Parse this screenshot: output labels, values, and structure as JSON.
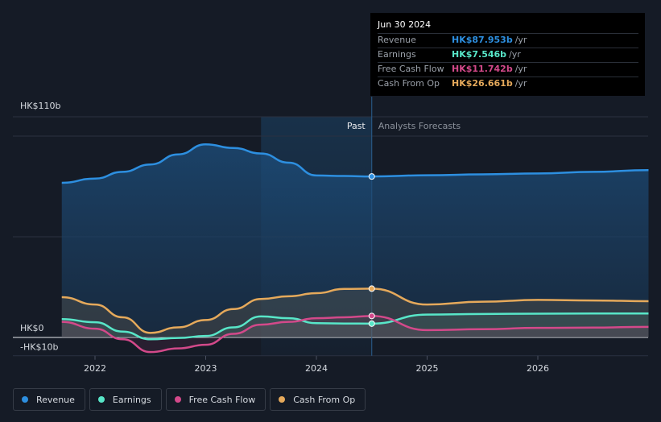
{
  "chart_data": {
    "type": "area",
    "y_axis": {
      "top_label": "HK$110b",
      "zero_label": "HK$0",
      "bottom_label": "-HK$10b",
      "ylim": [
        -10,
        110
      ]
    },
    "x_axis": {
      "tick_labels": [
        "2022",
        "2023",
        "2024",
        "2025",
        "2026"
      ],
      "ticks": [
        2022,
        2023,
        2024,
        2025,
        2026
      ],
      "xlim": [
        2021.5,
        2027
      ]
    },
    "divider_x": 2024.5,
    "shaded_start_x": 2023.5,
    "past_label": "Past",
    "forecast_label": "Analysts Forecasts",
    "grid": true,
    "series": [
      {
        "name": "Revenue",
        "color": "#2d8fe0",
        "x": [
          2021.7,
          2022.0,
          2022.25,
          2022.5,
          2022.75,
          2023.0,
          2023.25,
          2023.5,
          2023.75,
          2024.0,
          2024.25,
          2024.5,
          2025.0,
          2025.5,
          2026.0,
          2026.5,
          2027.0
        ],
        "y": [
          84.5,
          86.8,
          90.5,
          94.5,
          100.0,
          105.5,
          103.5,
          100.5,
          95.5,
          88.5,
          88.2,
          87.95,
          88.6,
          89.1,
          89.6,
          90.5,
          91.4
        ]
      },
      {
        "name": "Earnings",
        "color": "#58e6c8",
        "x": [
          2021.7,
          2022.0,
          2022.25,
          2022.5,
          2022.75,
          2023.0,
          2023.25,
          2023.5,
          2023.75,
          2024.0,
          2024.25,
          2024.5,
          2025.0,
          2025.5,
          2026.0,
          2026.5,
          2027.0
        ],
        "y": [
          10.0,
          8.3,
          3.2,
          -1.0,
          -0.3,
          0.8,
          5.5,
          11.5,
          10.5,
          7.8,
          7.6,
          7.546,
          12.5,
          12.8,
          13.0,
          13.1,
          13.1
        ]
      },
      {
        "name": "Free Cash Flow",
        "color": "#d3498a",
        "x": [
          2021.7,
          2022.0,
          2022.25,
          2022.5,
          2022.75,
          2023.0,
          2023.25,
          2023.5,
          2023.75,
          2024.0,
          2024.25,
          2024.5,
          2025.0,
          2025.5,
          2026.0,
          2026.5,
          2027.0
        ],
        "y": [
          8.5,
          4.8,
          -1.0,
          -8.0,
          -6.0,
          -4.0,
          2.0,
          7.0,
          8.5,
          10.5,
          11.0,
          11.742,
          4.0,
          4.5,
          5.2,
          5.4,
          5.8
        ]
      },
      {
        "name": "Cash From Op",
        "color": "#e5a95b",
        "x": [
          2021.7,
          2022.0,
          2022.25,
          2022.5,
          2022.75,
          2023.0,
          2023.25,
          2023.5,
          2023.75,
          2024.0,
          2024.25,
          2024.5,
          2025.0,
          2025.5,
          2026.0,
          2026.5,
          2027.0
        ],
        "y": [
          22.0,
          18.0,
          11.0,
          2.5,
          5.5,
          9.5,
          15.5,
          21.0,
          22.5,
          24.2,
          26.5,
          26.661,
          18.0,
          19.5,
          20.5,
          20.2,
          19.8
        ]
      }
    ]
  },
  "tooltip": {
    "date": "Jun 30 2024",
    "rows": [
      {
        "label": "Revenue",
        "value": "HK$87.953b",
        "unit": "/yr",
        "color": "#2d8fe0"
      },
      {
        "label": "Earnings",
        "value": "HK$7.546b",
        "unit": "/yr",
        "color": "#58e6c8"
      },
      {
        "label": "Free Cash Flow",
        "value": "HK$11.742b",
        "unit": "/yr",
        "color": "#d3498a"
      },
      {
        "label": "Cash From Op",
        "value": "HK$26.661b",
        "unit": "/yr",
        "color": "#e5a95b"
      }
    ]
  },
  "legend": [
    {
      "label": "Revenue",
      "color": "#2d8fe0"
    },
    {
      "label": "Earnings",
      "color": "#58e6c8"
    },
    {
      "label": "Free Cash Flow",
      "color": "#d3498a"
    },
    {
      "label": "Cash From Op",
      "color": "#e5a95b"
    }
  ]
}
